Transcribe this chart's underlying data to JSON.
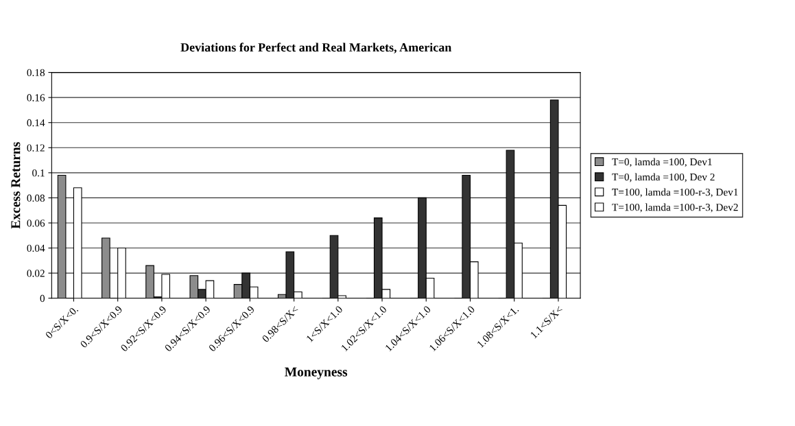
{
  "chart_data": {
    "type": "bar",
    "title": "Deviations for Perfect and Real Markets, American",
    "xlabel": "Moneyness",
    "ylabel": "Excess Returns",
    "categories": [
      "0<S/X<0.",
      "0.9<S/X<0.9",
      "0.92<S/X<0.9",
      "0.94<S/X<0.9",
      "0.96<S/X<0.9",
      "0.98<S/X<",
      "1<S/X<1.0",
      "1.02<S/X<1.0",
      "1.04<S/X<1.0",
      "1.06<S/X<1.0",
      "1.08<S/X<1.",
      "1.1<S/X<"
    ],
    "series": [
      {
        "name": "T=0, lamda =100, Dev1",
        "color": "#8c8c8c",
        "values": [
          0.098,
          0.048,
          0.026,
          0.018,
          0.011,
          0.003,
          0,
          0,
          0,
          0,
          0,
          0
        ]
      },
      {
        "name": "T=0, lamda =100, Dev 2",
        "color": "#333333",
        "values": [
          0,
          0,
          0.001,
          0.007,
          0.02,
          0.037,
          0.05,
          0.064,
          0.08,
          0.098,
          0.118,
          0.158
        ]
      },
      {
        "name": "T=100, lamda =100-r-3, Dev1",
        "color": "#ffffff",
        "values": [
          0.088,
          0.04,
          0.019,
          0.014,
          0.009,
          0.005,
          0.002,
          0.007,
          0.016,
          0.029,
          0.044,
          0.074
        ]
      },
      {
        "name": "T=100, lamda =100-r-3, Dev2",
        "color": "#ffffff",
        "values": [
          null,
          null,
          null,
          null,
          null,
          null,
          null,
          null,
          null,
          null,
          null,
          null
        ]
      }
    ],
    "ylim": [
      0,
      0.18
    ],
    "yticks": [
      {
        "value": 0,
        "label": "0"
      },
      0.02,
      0.04,
      0.06,
      0.08,
      {
        "value": 0.1,
        "label": "0.1"
      },
      0.12,
      0.14,
      0.16,
      0.18
    ],
    "grid": "y",
    "legend": "right"
  }
}
